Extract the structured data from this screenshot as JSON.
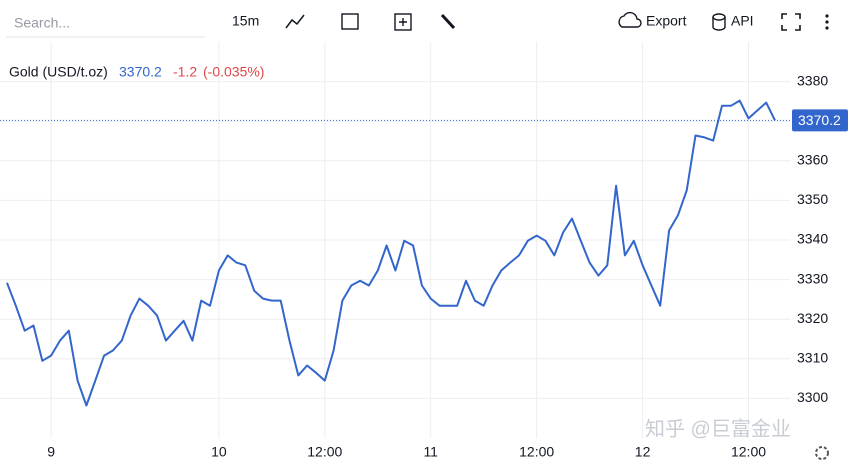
{
  "toolbar": {
    "search_placeholder": "Search...",
    "interval": "15m",
    "export": "Export",
    "api": "API"
  },
  "watermark": "知乎 @巨富金业",
  "chart_data": {
    "type": "line",
    "title": "Gold (USD/t.oz)",
    "last_price": 3370.2,
    "change": "-1.2",
    "change_percent": "(-0.035%)",
    "x": [
      0,
      1,
      2,
      3,
      4,
      5,
      6,
      7,
      8,
      9,
      10,
      11,
      12,
      13,
      14,
      15,
      16,
      17,
      18,
      19,
      20,
      21,
      22,
      23,
      24,
      25,
      26,
      27,
      28,
      29,
      30,
      31,
      32,
      33,
      34,
      35,
      36,
      37,
      38,
      39,
      40,
      41,
      42,
      43,
      44,
      45,
      46,
      47,
      48,
      49,
      50,
      51,
      52,
      53,
      54,
      55,
      56,
      57,
      58,
      59,
      60,
      61,
      62,
      63,
      64,
      65,
      66,
      67,
      68,
      69,
      70,
      71,
      72,
      73,
      74,
      75,
      76,
      77,
      78,
      79,
      80,
      81,
      82,
      83,
      84,
      85,
      86,
      87
    ],
    "series": [
      {
        "name": "Gold (USD/t.oz)",
        "color": "#3366cc",
        "values": [
          3329.2,
          3323.4,
          3317.1,
          3318.4,
          3309.5,
          3310.8,
          3314.6,
          3317.1,
          3304.5,
          3298.2,
          3304.5,
          3310.8,
          3312.1,
          3314.6,
          3320.9,
          3325.2,
          3323.4,
          3320.9,
          3314.6,
          3317.1,
          3319.6,
          3314.6,
          3324.7,
          3323.4,
          3332.3,
          3336.1,
          3334.3,
          3333.6,
          3327.2,
          3325.2,
          3324.7,
          3324.7,
          3314.6,
          3305.8,
          3308.3,
          3306.5,
          3304.5,
          3312.1,
          3324.7,
          3328.5,
          3329.7,
          3328.5,
          3332.3,
          3338.6,
          3332.3,
          3339.8,
          3338.6,
          3328.5,
          3325.2,
          3323.4,
          3323.4,
          3323.4,
          3329.7,
          3324.7,
          3323.4,
          3328.5,
          3332.3,
          3334.3,
          3336.1,
          3339.8,
          3341.1,
          3339.8,
          3336.1,
          3341.9,
          3345.4,
          3339.8,
          3334.3,
          3331.0,
          3333.6,
          3353.7,
          3336.1,
          3339.8,
          3333.6,
          3328.5,
          3323.4,
          3342.4,
          3346.2,
          3352.5,
          3366.4,
          3365.9,
          3365.1,
          3373.9,
          3373.9,
          3375.2,
          3370.7,
          3372.7,
          3374.7,
          3370.2
        ]
      }
    ],
    "xlim": [
      0,
      88.7
    ],
    "ylim": [
      3290,
      3390
    ],
    "xticks": [
      {
        "value": 5,
        "label": "9"
      },
      {
        "value": 24,
        "label": "10"
      },
      {
        "value": 36,
        "label": "12:00"
      },
      {
        "value": 48,
        "label": "11"
      },
      {
        "value": 60,
        "label": "12:00"
      },
      {
        "value": 72,
        "label": "12"
      },
      {
        "value": 84,
        "label": "12:00"
      }
    ],
    "yticks": [
      3300,
      3310,
      3320,
      3330,
      3340,
      3350,
      3360,
      3370,
      3380
    ],
    "grid": true
  }
}
